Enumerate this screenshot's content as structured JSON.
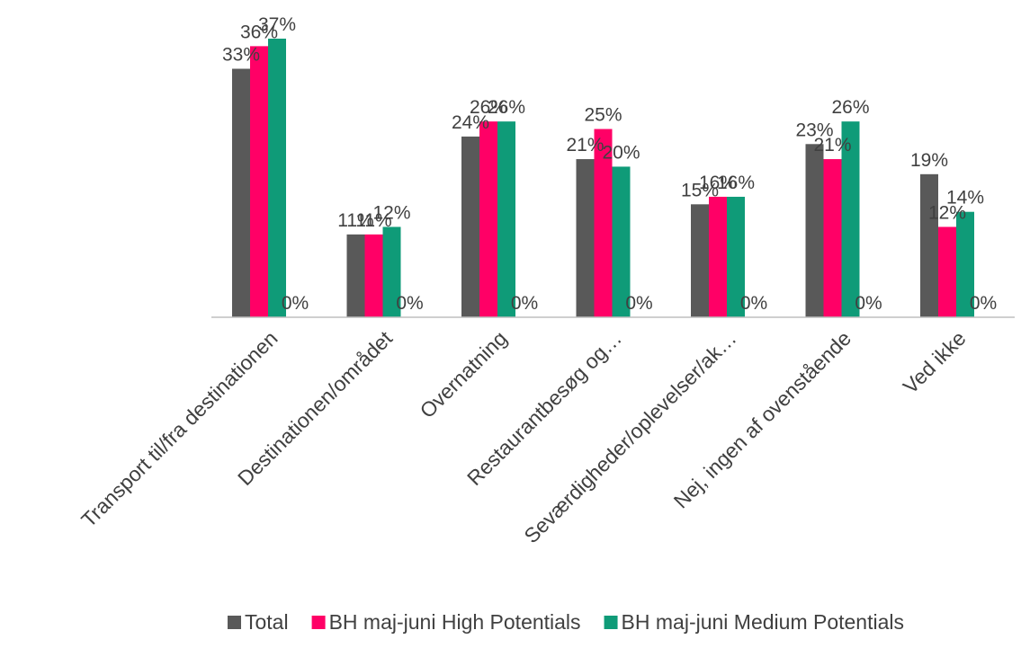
{
  "chart_data": {
    "type": "bar",
    "categories": [
      "Transport til/fra destinationen",
      "Destinationen/området",
      "Overnatning",
      "Restaurantbesøg og…",
      "Seværdigheder/oplevelser/ak…",
      "Nej, ingen af ovenstående",
      "Ved ikke"
    ],
    "series": [
      {
        "name": "Total",
        "values": [
          33,
          11,
          24,
          21,
          15,
          23,
          19
        ],
        "labels": [
          "33%",
          "11%",
          "24%",
          "21%",
          "15%",
          "23%",
          "19%"
        ],
        "color": "#595959"
      },
      {
        "name": "BH maj-juni High Potentials",
        "values": [
          36,
          11,
          26,
          25,
          16,
          21,
          12
        ],
        "labels": [
          "36%",
          "11%",
          "26%",
          "25%",
          "16%",
          "21%",
          "12%"
        ],
        "color": "#ff0066"
      },
      {
        "name": "BH maj-juni Medium Potentials",
        "values": [
          37,
          12,
          26,
          20,
          16,
          26,
          14
        ],
        "labels": [
          "37%",
          "12%",
          "26%",
          "20%",
          "16%",
          "26%",
          "14%"
        ],
        "color": "#0f9b78"
      },
      {
        "name": "",
        "values": [
          0,
          0,
          0,
          0,
          0,
          0,
          0
        ],
        "labels": [
          "0%",
          "0%",
          "0%",
          "0%",
          "0%",
          "0%",
          "0%"
        ],
        "color": "#ffffff"
      }
    ],
    "ylim": [
      0,
      38
    ],
    "grid": false,
    "legend": "bottom",
    "axis_color": "#bfbfbf",
    "text_color": "#404040"
  }
}
